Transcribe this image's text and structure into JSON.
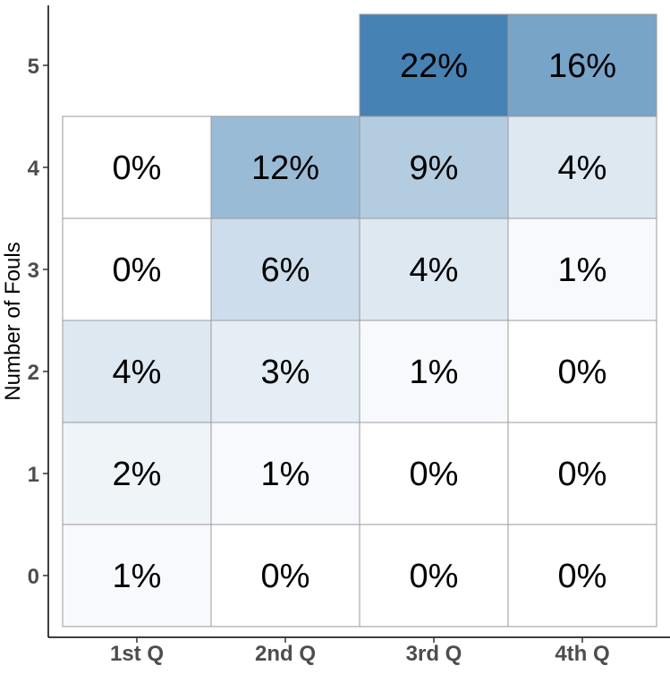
{
  "chart_data": {
    "type": "heatmap",
    "title": "",
    "xlabel": "",
    "ylabel": "Number of Fouls",
    "x_categories": [
      "1st Q",
      "2nd Q",
      "3rd Q",
      "4th Q"
    ],
    "y_categories": [
      "0",
      "1",
      "2",
      "3",
      "4",
      "5"
    ],
    "value_unit": "%",
    "grid": false,
    "legend": "none",
    "color_low": "#ffffff",
    "color_high": "#4682b4",
    "cells": [
      {
        "x": "1st Q",
        "y": "0",
        "value": 1
      },
      {
        "x": "2nd Q",
        "y": "0",
        "value": 0
      },
      {
        "x": "3rd Q",
        "y": "0",
        "value": 0
      },
      {
        "x": "4th Q",
        "y": "0",
        "value": 0
      },
      {
        "x": "1st Q",
        "y": "1",
        "value": 2
      },
      {
        "x": "2nd Q",
        "y": "1",
        "value": 1
      },
      {
        "x": "3rd Q",
        "y": "1",
        "value": 0
      },
      {
        "x": "4th Q",
        "y": "1",
        "value": 0
      },
      {
        "x": "1st Q",
        "y": "2",
        "value": 4
      },
      {
        "x": "2nd Q",
        "y": "2",
        "value": 3
      },
      {
        "x": "3rd Q",
        "y": "2",
        "value": 1
      },
      {
        "x": "4th Q",
        "y": "2",
        "value": 0
      },
      {
        "x": "1st Q",
        "y": "3",
        "value": 0
      },
      {
        "x": "2nd Q",
        "y": "3",
        "value": 6
      },
      {
        "x": "3rd Q",
        "y": "3",
        "value": 4
      },
      {
        "x": "4th Q",
        "y": "3",
        "value": 1
      },
      {
        "x": "1st Q",
        "y": "4",
        "value": 0
      },
      {
        "x": "2nd Q",
        "y": "4",
        "value": 12
      },
      {
        "x": "3rd Q",
        "y": "4",
        "value": 9
      },
      {
        "x": "4th Q",
        "y": "4",
        "value": 4
      },
      {
        "x": "3rd Q",
        "y": "5",
        "value": 22
      },
      {
        "x": "4th Q",
        "y": "5",
        "value": 16
      }
    ]
  }
}
